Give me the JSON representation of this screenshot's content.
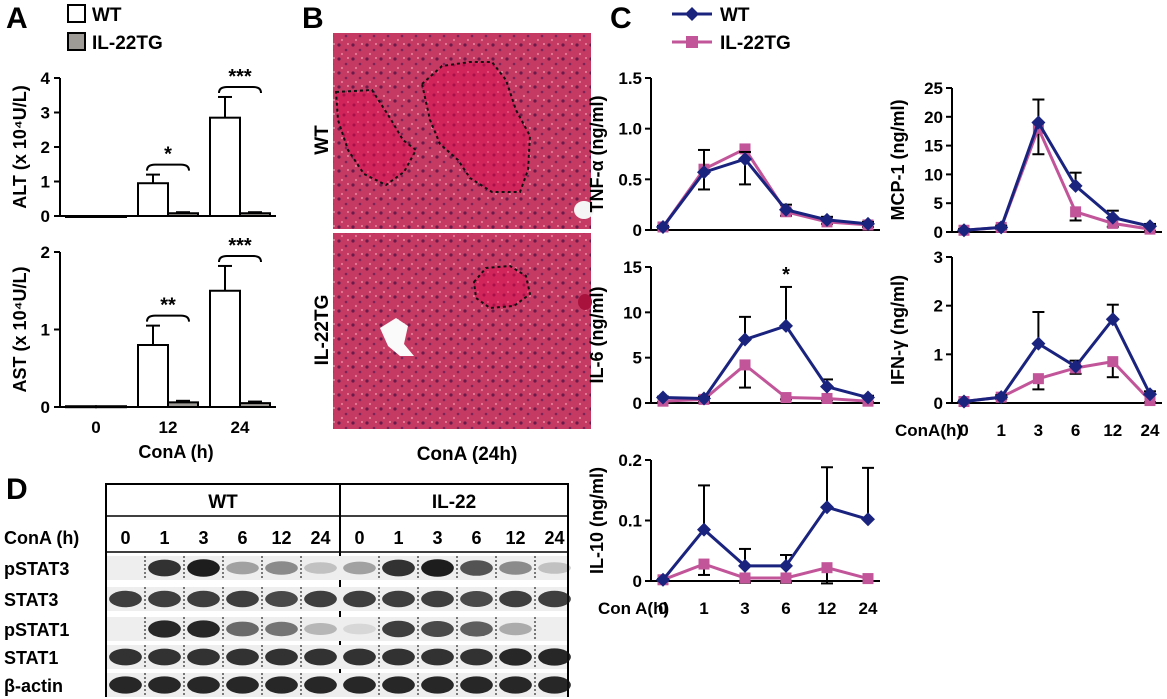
{
  "panels": {
    "A": {
      "letter": "A",
      "legend": [
        "WT",
        "IL-22TG"
      ],
      "xlabel": "ConA (h)"
    },
    "B": {
      "letter": "B",
      "row_labels": [
        "WT",
        "IL-22TG"
      ],
      "xlabel": "ConA (24h)"
    },
    "C": {
      "letter": "C",
      "legend": [
        "WT",
        "IL-22TG"
      ],
      "xlabel_right": "ConA(h)",
      "xlabel_left": "Con A(h)"
    },
    "D": {
      "letter": "D",
      "group_labels": [
        "WT",
        "IL-22"
      ],
      "row_header": "ConA (h)",
      "timepoints": [
        "0",
        "1",
        "3",
        "6",
        "12",
        "24"
      ],
      "proteins": [
        "pSTAT3",
        "STAT3",
        "pSTAT1",
        "STAT1",
        "β-actin"
      ]
    }
  },
  "colors": {
    "wt_line": "#1a237e",
    "tg_line": "#c2559a",
    "wt_bar": "#ffffff",
    "tg_bar": "#9e9a95",
    "tissue": "#c0325a"
  },
  "chart_data": [
    {
      "id": "A-ALT",
      "type": "bar",
      "ylabel": "ALT (x 10⁴U/L)",
      "ylim": [
        0,
        4
      ],
      "yticks": [
        "0",
        "1",
        "2",
        "3",
        "4"
      ],
      "categories": [
        "0",
        "12",
        "24"
      ],
      "series": [
        {
          "name": "WT",
          "values": [
            0,
            0.95,
            2.85
          ],
          "errors": [
            0,
            0.25,
            0.6
          ]
        },
        {
          "name": "IL-22TG",
          "values": [
            0,
            0.08,
            0.08
          ],
          "errors": [
            0,
            0.03,
            0.03
          ]
        }
      ],
      "significance": [
        "",
        "*",
        "***"
      ]
    },
    {
      "id": "A-AST",
      "type": "bar",
      "ylabel": "AST (x 10⁴U/L)",
      "ylim": [
        0,
        2
      ],
      "yticks": [
        "0",
        "1",
        "2"
      ],
      "categories": [
        "0",
        "12",
        "24"
      ],
      "series": [
        {
          "name": "WT",
          "values": [
            0.01,
            0.8,
            1.5
          ],
          "errors": [
            0,
            0.25,
            0.32
          ]
        },
        {
          "name": "IL-22TG",
          "values": [
            0.01,
            0.06,
            0.05
          ],
          "errors": [
            0,
            0.02,
            0.02
          ]
        }
      ],
      "significance": [
        "",
        "**",
        "***"
      ]
    },
    {
      "id": "C-TNF",
      "type": "line",
      "ylabel": "TNF-α (ng/ml)",
      "ylim": [
        0,
        1.5
      ],
      "yticks": [
        "0",
        "0.5",
        "1.0",
        "1.5"
      ],
      "x": [
        0,
        1,
        3,
        6,
        12,
        24
      ],
      "series": [
        {
          "name": "WT",
          "values": [
            0.03,
            0.57,
            0.7,
            0.2,
            0.1,
            0.06
          ],
          "errors": [
            0.01,
            0.22,
            0.07,
            0.05,
            0.03,
            0.02
          ]
        },
        {
          "name": "IL-22TG",
          "values": [
            0.03,
            0.6,
            0.8,
            0.18,
            0.08,
            0.05
          ],
          "errors": [
            0.01,
            0.2,
            0.35,
            0.04,
            0.02,
            0.02
          ]
        }
      ],
      "significance": [
        "",
        "",
        "",
        "",
        "",
        ""
      ]
    },
    {
      "id": "C-MCP1",
      "type": "line",
      "ylabel": "MCP-1 (ng/ml)",
      "ylim": [
        0,
        25
      ],
      "yticks": [
        "0",
        "5",
        "10",
        "15",
        "20",
        "25"
      ],
      "x": [
        0,
        1,
        3,
        6,
        12,
        24
      ],
      "series": [
        {
          "name": "WT",
          "values": [
            0.3,
            0.8,
            19,
            8,
            2.5,
            1
          ],
          "errors": [
            0.2,
            0.3,
            4,
            2.3,
            1.2,
            0.4
          ]
        },
        {
          "name": "IL-22TG",
          "values": [
            0.3,
            0.8,
            18,
            3.5,
            1.5,
            0.5
          ],
          "errors": [
            0.2,
            0.3,
            4.5,
            1.5,
            0.6,
            0.3
          ]
        }
      ],
      "significance": [
        "",
        "",
        "",
        "",
        "",
        ""
      ]
    },
    {
      "id": "C-IL6",
      "type": "line",
      "ylabel": "IL-6 (ng/ml)",
      "ylim": [
        0,
        15
      ],
      "yticks": [
        "0",
        "5",
        "10",
        "15"
      ],
      "x": [
        0,
        1,
        3,
        6,
        12,
        24
      ],
      "series": [
        {
          "name": "WT",
          "values": [
            0.6,
            0.5,
            7,
            8.5,
            1.8,
            0.6
          ],
          "errors": [
            0.1,
            0.2,
            2.5,
            4.3,
            0.8,
            0.2
          ]
        },
        {
          "name": "IL-22TG",
          "values": [
            0.2,
            0.4,
            4.2,
            0.6,
            0.5,
            0.2
          ],
          "errors": [
            0.1,
            0.2,
            2.5,
            0.2,
            0.2,
            0.1
          ]
        }
      ],
      "significance": [
        "",
        "",
        "",
        "*",
        "",
        ""
      ]
    },
    {
      "id": "C-IFNg",
      "type": "line",
      "ylabel": "IFN-γ (ng/ml)",
      "ylim": [
        0,
        3
      ],
      "yticks": [
        "0",
        "1",
        "2",
        "3"
      ],
      "x": [
        0,
        1,
        3,
        6,
        12,
        24
      ],
      "series": [
        {
          "name": "WT",
          "values": [
            0.03,
            0.12,
            1.22,
            0.75,
            1.72,
            0.18
          ],
          "errors": [
            0.02,
            0.04,
            0.65,
            0.12,
            0.3,
            0.06
          ]
        },
        {
          "name": "IL-22TG",
          "values": [
            0.03,
            0.12,
            0.5,
            0.72,
            0.85,
            0.05
          ],
          "errors": [
            0.02,
            0.04,
            0.22,
            0.12,
            0.32,
            0.03
          ]
        }
      ],
      "significance": [
        "",
        "",
        "",
        "",
        "",
        ""
      ]
    },
    {
      "id": "C-IL10",
      "type": "line",
      "ylabel": "IL-10 (ng/ml)",
      "ylim": [
        0,
        0.2
      ],
      "yticks": [
        "0",
        "0.1",
        "0.2"
      ],
      "x": [
        0,
        1,
        3,
        6,
        12,
        24
      ],
      "series": [
        {
          "name": "WT",
          "values": [
            0.002,
            0.085,
            0.025,
            0.025,
            0.122,
            0.102
          ],
          "errors": [
            0.001,
            0.073,
            0.028,
            0.018,
            0.066,
            0.085
          ]
        },
        {
          "name": "IL-22TG",
          "values": [
            0.002,
            0.028,
            0.005,
            0.005,
            0.022,
            0.004
          ],
          "errors": [
            0.001,
            0.018,
            0.008,
            0.008,
            0.026,
            0.004
          ]
        }
      ],
      "significance": [
        "",
        "",
        "",
        "",
        "",
        ""
      ]
    }
  ]
}
